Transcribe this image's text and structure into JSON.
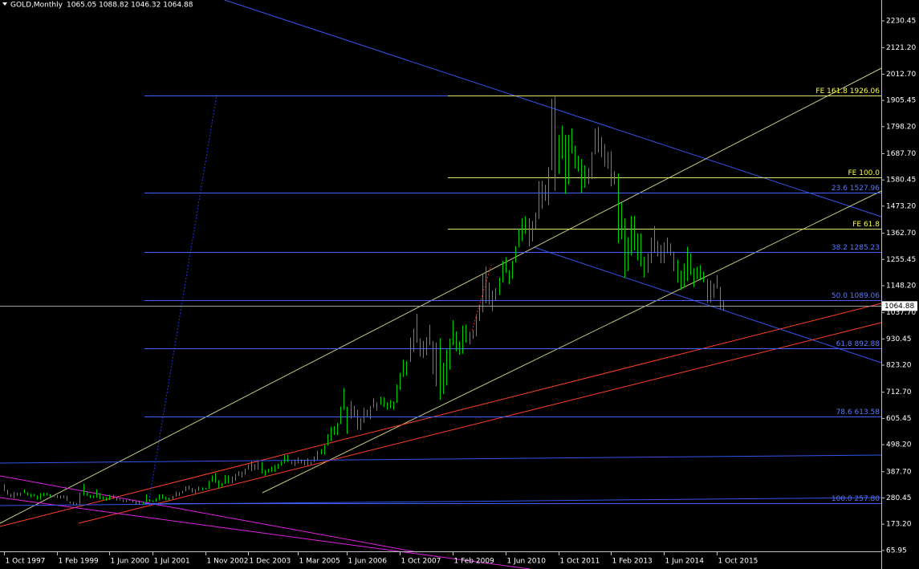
{
  "chart_data": {
    "type": "hl-bar",
    "title": "GOLD,Monthly",
    "quote": "1065.05 1088.82 1046.32 1064.88",
    "color": "#00d000",
    "xlim": [
      -1.2,
      265.9
    ],
    "ylim": [
      -10,
      2316
    ],
    "xticks": [
      {
        "value": 0,
        "label": "1 Oct 1997"
      },
      {
        "value": 16,
        "label": "1 Feb 1999"
      },
      {
        "value": 32,
        "label": "1 Jun 2000"
      },
      {
        "value": 45,
        "label": "1 Jul 2001"
      },
      {
        "value": 61,
        "label": "1 Nov 2002"
      },
      {
        "value": 74,
        "label": "1 Dec 2003"
      },
      {
        "value": 89,
        "label": "1 Mar 2005"
      },
      {
        "value": 104,
        "label": "1 Jun 2006"
      },
      {
        "value": 120,
        "label": "1 Oct 2007"
      },
      {
        "value": 136,
        "label": "1 Feb 2009"
      },
      {
        "value": 152,
        "label": "1 Jun 2010"
      },
      {
        "value": 168,
        "label": "1 Oct 2011"
      },
      {
        "value": 184,
        "label": "1 Feb 2013"
      },
      {
        "value": 200,
        "label": "1 Jun 2014"
      },
      {
        "value": 216,
        "label": "1 Oct 2015"
      }
    ],
    "yticks": [
      {
        "value": 2230.45,
        "label": "2230.45"
      },
      {
        "value": 2121.2,
        "label": "2121.20"
      },
      {
        "value": 2012.7,
        "label": "2012.70"
      },
      {
        "value": 1905.45,
        "label": "1905.45"
      },
      {
        "value": 1798.2,
        "label": "1798.20"
      },
      {
        "value": 1687.7,
        "label": "1687.70"
      },
      {
        "value": 1580.45,
        "label": "1580.45"
      },
      {
        "value": 1473.2,
        "label": "1473.20"
      },
      {
        "value": 1362.7,
        "label": "1362.70"
      },
      {
        "value": 1255.45,
        "label": "1255.45"
      },
      {
        "value": 1148.2,
        "label": "1148.20"
      },
      {
        "value": 1037.7,
        "label": "1037.70"
      },
      {
        "value": 930.45,
        "label": "930.45"
      },
      {
        "value": 823.2,
        "label": "823.20"
      },
      {
        "value": 712.7,
        "label": "712.70"
      },
      {
        "value": 605.45,
        "label": "605.45"
      },
      {
        "value": 498.2,
        "label": "498.20"
      },
      {
        "value": 387.7,
        "label": "387.70"
      },
      {
        "value": 280.45,
        "label": "280.45"
      },
      {
        "value": 173.2,
        "label": "173.20"
      },
      {
        "value": 65.95,
        "label": "65.95"
      }
    ],
    "last_price": {
      "value": 1064.88,
      "label": "1064.88"
    },
    "fib_levels": {
      "color": "#4060ff",
      "label_color": "#5a78ff",
      "levels": [
        {
          "value": 1926.06,
          "label": ""
        },
        {
          "value": 1527.96,
          "label": "23.6 1527.96"
        },
        {
          "value": 1285.23,
          "label": "38.2 1285.23"
        },
        {
          "value": 1089.06,
          "label": "50.0  1089.06"
        },
        {
          "value": 892.88,
          "label": "61.8 892.88"
        },
        {
          "value": 613.58,
          "label": "78.6 613.58"
        },
        {
          "value": 257.8,
          "label": "100.0 257.80"
        }
      ]
    },
    "fe_levels": {
      "color": "#e0e070",
      "label_color": "#ffff40",
      "levels": [
        {
          "value": 1926.06,
          "label": "FE 161.8  1926.06"
        },
        {
          "value": 1591,
          "label": "FE 100.0"
        },
        {
          "value": 1381,
          "label": "FE 61.8"
        }
      ]
    },
    "high": [
      337,
      314,
      297,
      305,
      302,
      303,
      315,
      304,
      297,
      297,
      291,
      300,
      302,
      301,
      295,
      293,
      292,
      290,
      292,
      290,
      266,
      264,
      259,
      302,
      338,
      305,
      293,
      292,
      316,
      300,
      287,
      284,
      293,
      293,
      282,
      278,
      274,
      272,
      275,
      272,
      268,
      270,
      264,
      295,
      275,
      271,
      279,
      295,
      295,
      286,
      281,
      289,
      306,
      304,
      310,
      328,
      331,
      321,
      316,
      327,
      324,
      322,
      351,
      372,
      383,
      353,
      342,
      374,
      372,
      368,
      378,
      390,
      388,
      400,
      417,
      430,
      419,
      430,
      427,
      395,
      400,
      409,
      415,
      420,
      430,
      456,
      456,
      431,
      438,
      446,
      438,
      437,
      443,
      430,
      450,
      474,
      480,
      497,
      541,
      572,
      574,
      587,
      654,
      730,
      653,
      677,
      657,
      640,
      607,
      649,
      641,
      656,
      688,
      672,
      694,
      691,
      672,
      681,
      675,
      744,
      792,
      845,
      840,
      936,
      973,
      1033,
      933,
      922,
      938,
      988,
      922,
      916,
      934,
      833,
      888,
      932,
      1007,
      961,
      921,
      985,
      989,
      960,
      966,
      1026,
      1070,
      1195,
      1226,
      1162,
      1128,
      1138,
      1182,
      1249,
      1265,
      1211,
      1250,
      1310,
      1381,
      1424,
      1432,
      1424,
      1412,
      1447,
      1576,
      1577,
      1561,
      1633,
      1912,
      1920,
      1764,
      1803,
      1764,
      1765,
      1791,
      1721,
      1679,
      1666,
      1640,
      1630,
      1695,
      1790,
      1796,
      1755,
      1727,
      1696,
      1697,
      1617,
      1607,
      1488,
      1423,
      1347,
      1433,
      1434,
      1362,
      1361,
      1267,
      1280,
      1345,
      1392,
      1331,
      1315,
      1325,
      1345,
      1321,
      1288,
      1255,
      1210,
      1238,
      1307,
      1280,
      1220,
      1225,
      1232,
      1205,
      1175,
      1170,
      1157,
      1191,
      1144,
      1088.82
    ],
    "low": [
      308,
      293,
      283,
      278,
      289,
      289,
      299,
      290,
      283,
      286,
      273,
      273,
      287,
      290,
      285,
      284,
      280,
      278,
      279,
      268,
      257,
      252,
      252,
      253,
      290,
      288,
      280,
      280,
      282,
      275,
      273,
      269,
      272,
      276,
      270,
      270,
      263,
      263,
      268,
      262,
      255,
      255,
      254,
      263,
      266,
      264,
      265,
      271,
      277,
      272,
      271,
      276,
      286,
      289,
      299,
      307,
      313,
      302,
      299,
      310,
      311,
      315,
      318,
      346,
      343,
      320,
      325,
      338,
      340,
      341,
      350,
      370,
      364,
      375,
      396,
      390,
      394,
      397,
      380,
      371,
      384,
      386,
      387,
      399,
      412,
      422,
      428,
      418,
      411,
      422,
      422,
      414,
      414,
      417,
      427,
      435,
      459,
      457,
      494,
      513,
      538,
      537,
      582,
      640,
      542,
      605,
      612,
      560,
      558,
      588,
      610,
      602,
      648,
      637,
      661,
      652,
      641,
      647,
      641,
      669,
      722,
      775,
      780,
      837,
      878,
      915,
      858,
      853,
      863,
      905,
      786,
      737,
      681,
      705,
      740,
      805,
      904,
      880,
      865,
      870,
      915,
      908,
      930,
      941,
      1003,
      1040,
      1076,
      1072,
      1044,
      1087,
      1111,
      1162,
      1200,
      1155,
      1176,
      1244,
      1305,
      1330,
      1360,
      1308,
      1329,
      1380,
      1421,
      1462,
      1495,
      1478,
      1620,
      1535,
      1605,
      1667,
      1523,
      1562,
      1689,
      1627,
      1614,
      1527,
      1548,
      1564,
      1583,
      1685,
      1692,
      1672,
      1636,
      1626,
      1554,
      1562,
      1321,
      1338,
      1180,
      1208,
      1272,
      1292,
      1251,
      1227,
      1182,
      1200,
      1240,
      1282,
      1268,
      1240,
      1240,
      1280,
      1272,
      1207,
      1160,
      1131,
      1142,
      1167,
      1192,
      1142,
      1175,
      1170,
      1162,
      1077,
      1080,
      1098,
      1136,
      1052,
      1046.32
    ]
  }
}
